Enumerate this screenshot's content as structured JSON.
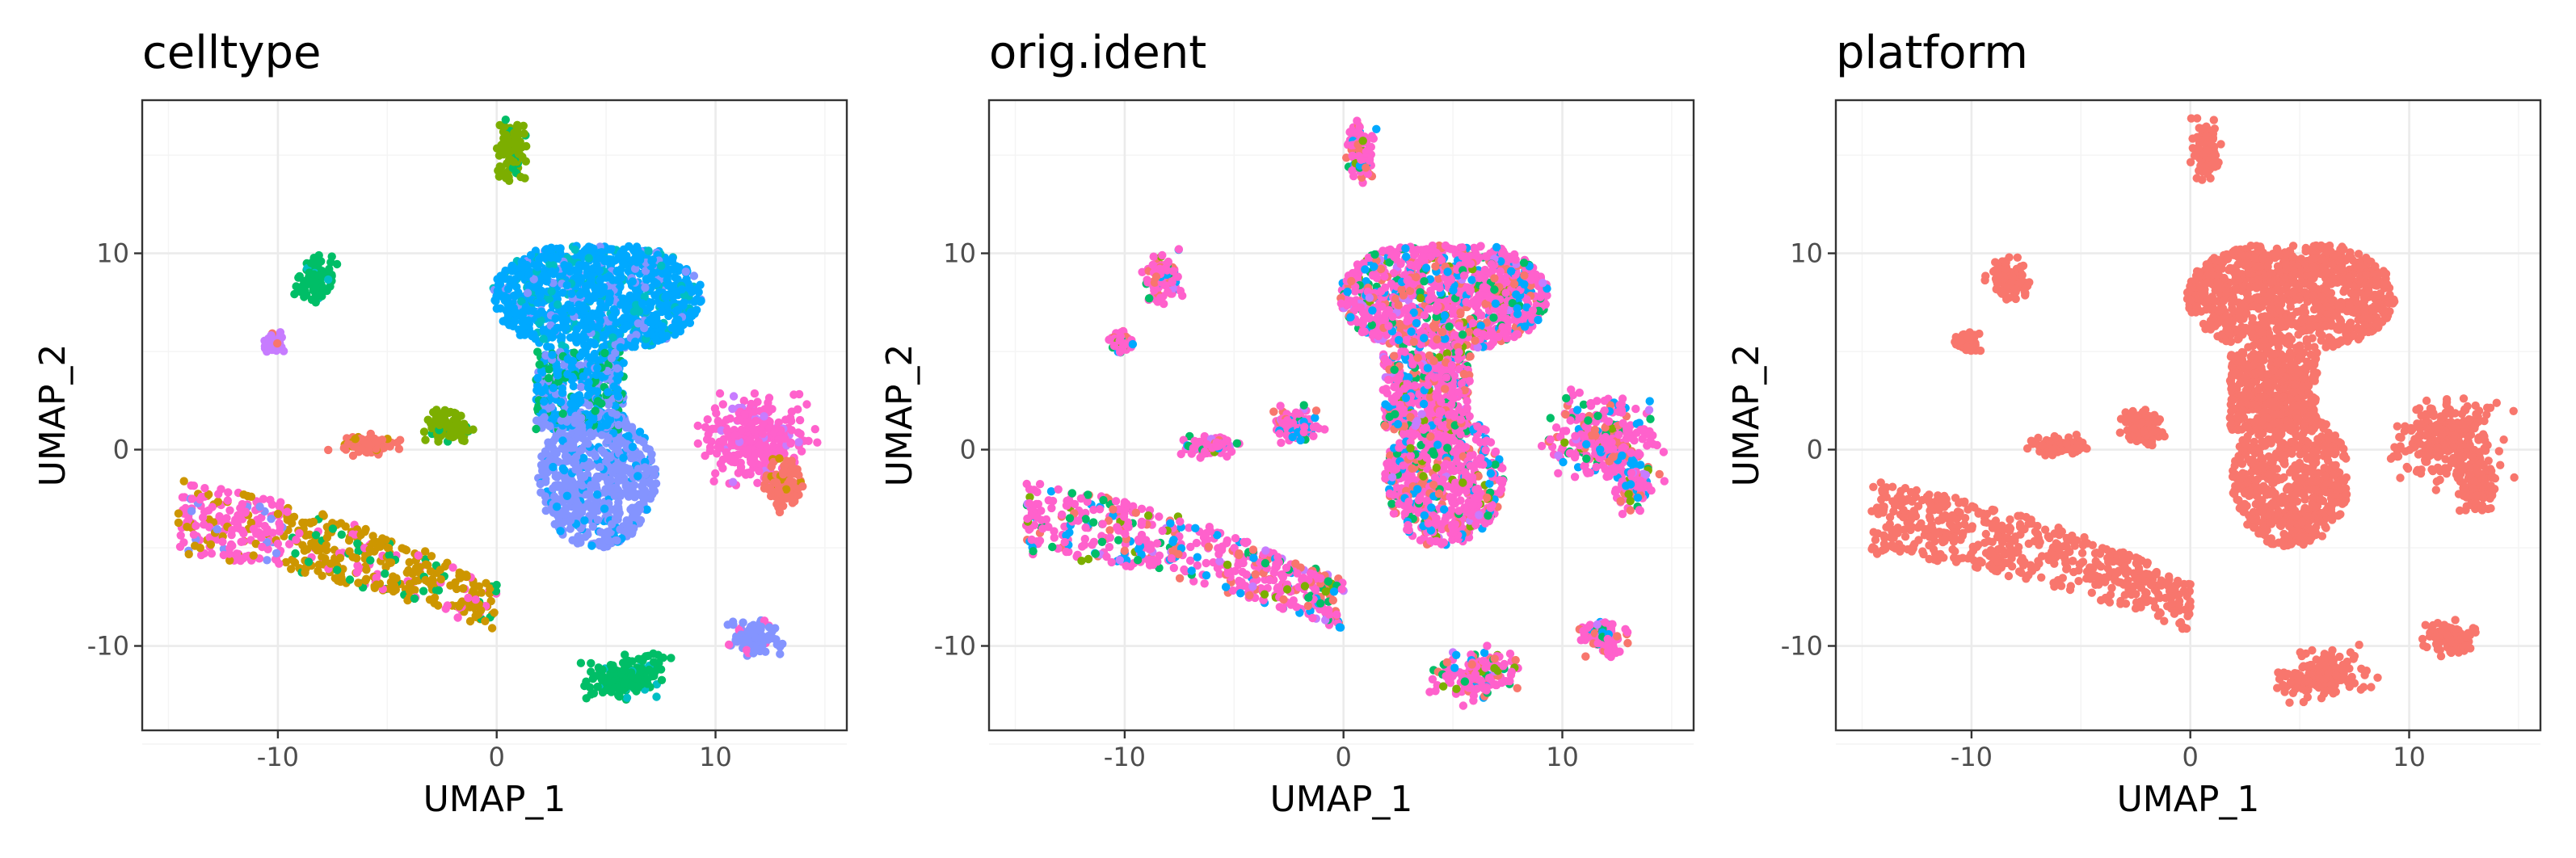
{
  "chart_data": [
    {
      "type": "scatter",
      "title": "celltype",
      "xlabel": "UMAP_1",
      "ylabel": "UMAP_2",
      "xlim": [
        -16.2,
        16.0
      ],
      "ylim": [
        -14.3,
        17.8
      ],
      "xticks": [
        -10,
        0,
        10
      ],
      "yticks": [
        -10,
        0,
        10
      ],
      "grid": true,
      "legend": "none",
      "colors": [
        "#F8766D",
        "#CD9600",
        "#7CAE00",
        "#00BE67",
        "#00BFC4",
        "#00A9FF",
        "#8494FF",
        "#FF61CC",
        "#C77CFF"
      ]
    },
    {
      "type": "scatter",
      "title": "orig.ident",
      "xlabel": "UMAP_1",
      "ylabel": "UMAP_2",
      "xlim": [
        -16.2,
        16.0
      ],
      "ylim": [
        -14.3,
        17.8
      ],
      "xticks": [
        -10,
        0,
        10
      ],
      "yticks": [
        -10,
        0,
        10
      ],
      "grid": true,
      "legend": "none",
      "colors": [
        "#FF61CC",
        "#F8766D",
        "#00A9FF",
        "#00BE67",
        "#7CAE00",
        "#C77CFF"
      ]
    },
    {
      "type": "scatter",
      "title": "platform",
      "xlabel": "UMAP_1",
      "ylabel": "UMAP_2",
      "xlim": [
        -16.2,
        16.0
      ],
      "ylim": [
        -14.3,
        17.8
      ],
      "xticks": [
        -10,
        0,
        10
      ],
      "yticks": [
        -10,
        0,
        10
      ],
      "grid": true,
      "legend": "none",
      "colors": [
        "#F8766D"
      ]
    }
  ]
}
